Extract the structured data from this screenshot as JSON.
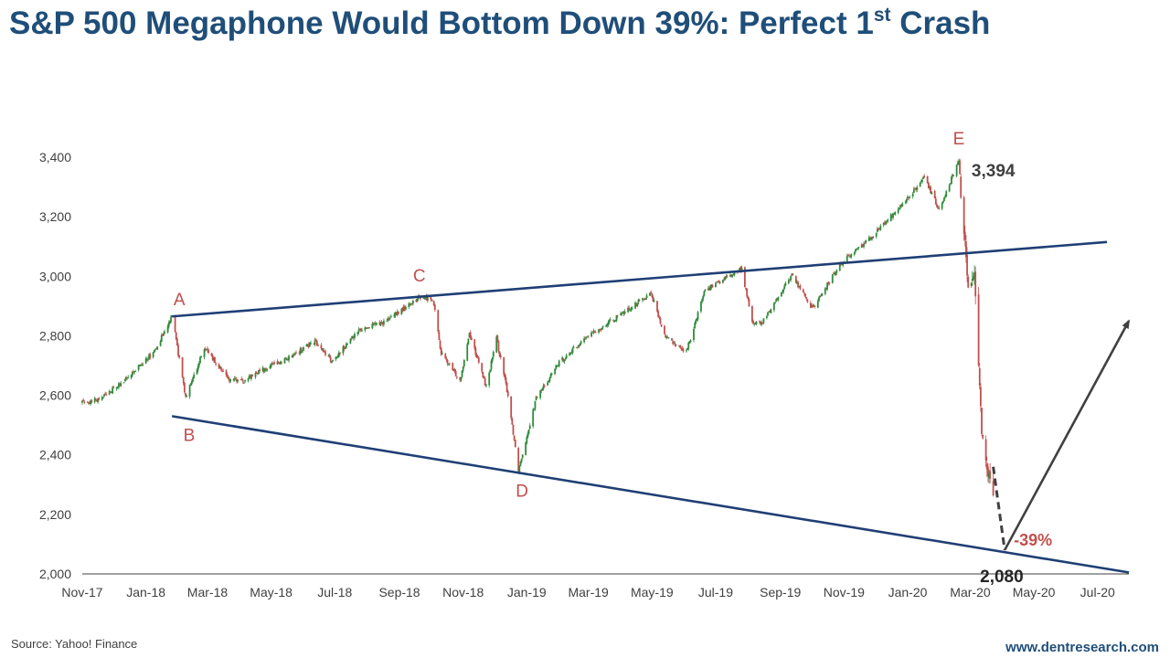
{
  "title": {
    "main": "S&P 500 Megaphone Would Bottom Down 39%: Perfect 1",
    "sup": "st",
    "tail": " Crash"
  },
  "source": "Source: Yahoo! Finance",
  "website": "www.dentresearch.com",
  "colors": {
    "title": "#1f4e79",
    "line": "#1f3f75",
    "label": "#c0504d",
    "up": "#2e8b3a",
    "down": "#c0504d",
    "arrow": "#404040",
    "axis": "#404040"
  },
  "chart_data": {
    "type": "line",
    "title": "S&P 500 Megaphone Would Bottom Down 39%: Perfect 1st Crash",
    "xlabel": "",
    "ylabel": "",
    "ylim": [
      2000,
      3400
    ],
    "yticks": [
      2000,
      2200,
      2400,
      2600,
      2800,
      3000,
      3200,
      3400
    ],
    "ytick_labels": [
      "2,000",
      "2,200",
      "2,400",
      "2,600",
      "2,800",
      "3,000",
      "3,200",
      "3,400"
    ],
    "xlim": [
      "2017-11-01",
      "2020-07-31"
    ],
    "xtick_dates": [
      "2017-11-01",
      "2018-01-01",
      "2018-03-01",
      "2018-05-01",
      "2018-07-01",
      "2018-09-01",
      "2018-11-01",
      "2019-01-01",
      "2019-03-01",
      "2019-05-01",
      "2019-07-01",
      "2019-09-01",
      "2019-11-01",
      "2020-01-01",
      "2020-03-01",
      "2020-05-01",
      "2020-07-01"
    ],
    "xtick_labels": [
      "Nov-17",
      "Jan-18",
      "Mar-18",
      "May-18",
      "Jul-18",
      "Sep-18",
      "Nov-18",
      "Jan-19",
      "Mar-19",
      "May-19",
      "Jul-19",
      "Sep-19",
      "Nov-19",
      "Jan-20",
      "Mar-20",
      "May-20",
      "Jul-20"
    ],
    "grid": false,
    "series": [
      {
        "style": "candlestick",
        "x": [
          "2017-11-01",
          "2017-11-20",
          "2017-12-15",
          "2018-01-10",
          "2018-01-26",
          "2018-02-08",
          "2018-02-26",
          "2018-03-22",
          "2018-04-06",
          "2018-04-20",
          "2018-05-15",
          "2018-06-12",
          "2018-06-28",
          "2018-07-25",
          "2018-08-20",
          "2018-09-20",
          "2018-10-03",
          "2018-10-11",
          "2018-10-29",
          "2018-11-07",
          "2018-11-23",
          "2018-12-03",
          "2018-12-14",
          "2018-12-24",
          "2019-01-10",
          "2019-02-01",
          "2019-03-01",
          "2019-04-01",
          "2019-04-30",
          "2019-05-13",
          "2019-06-03",
          "2019-06-20",
          "2019-07-26",
          "2019-08-05",
          "2019-08-14",
          "2019-09-12",
          "2019-10-02",
          "2019-10-28",
          "2019-11-29",
          "2019-12-27",
          "2020-01-17",
          "2020-01-31",
          "2020-02-19",
          "2020-02-28",
          "2020-03-05",
          "2020-03-12",
          "2020-03-16",
          "2020-03-20",
          "2020-03-23"
        ],
        "y": [
          2575,
          2590,
          2660,
          2750,
          2870,
          2590,
          2760,
          2650,
          2650,
          2680,
          2720,
          2780,
          2715,
          2820,
          2850,
          2930,
          2925,
          2740,
          2650,
          2810,
          2630,
          2790,
          2600,
          2350,
          2590,
          2710,
          2800,
          2870,
          2945,
          2800,
          2745,
          2950,
          3025,
          2845,
          2840,
          3005,
          2890,
          3040,
          3140,
          3240,
          3330,
          3225,
          3386,
          2955,
          3025,
          2480,
          2390,
          2300,
          2237
        ]
      },
      {
        "name": "",
        "style": "dashed-projection",
        "x": [
          "2020-03-23",
          "2020-04-03"
        ],
        "y": [
          2360,
          2080
        ]
      },
      {
        "style": "arrow",
        "x": [
          "2020-04-03",
          "2020-07-31"
        ],
        "y": [
          2080,
          2850
        ]
      }
    ],
    "trendlines": [
      {
        "role": "upper",
        "x": [
          "2018-01-26",
          "2020-07-10"
        ],
        "y": [
          2865,
          3115
        ]
      },
      {
        "role": "lower",
        "x": [
          "2018-01-26",
          "2020-07-31"
        ],
        "y": [
          2530,
          2005
        ]
      }
    ],
    "points": [
      {
        "label": "A",
        "x": "2018-01-26",
        "y": 2872
      },
      {
        "label": "B",
        "x": "2018-02-08",
        "y": 2532
      },
      {
        "label": "C",
        "x": "2018-09-20",
        "y": 2940
      },
      {
        "label": "D",
        "x": "2018-12-24",
        "y": 2346
      },
      {
        "label": "E",
        "x": "2020-02-19",
        "y": 3394
      }
    ],
    "annotations": [
      {
        "text": "3,394",
        "x": "2020-02-19",
        "y": 3394
      },
      {
        "text": "2,080",
        "x": "2020-04-03",
        "y": 2080
      },
      {
        "text": "-39%",
        "x": "2020-04-03",
        "y": 2080
      }
    ]
  }
}
